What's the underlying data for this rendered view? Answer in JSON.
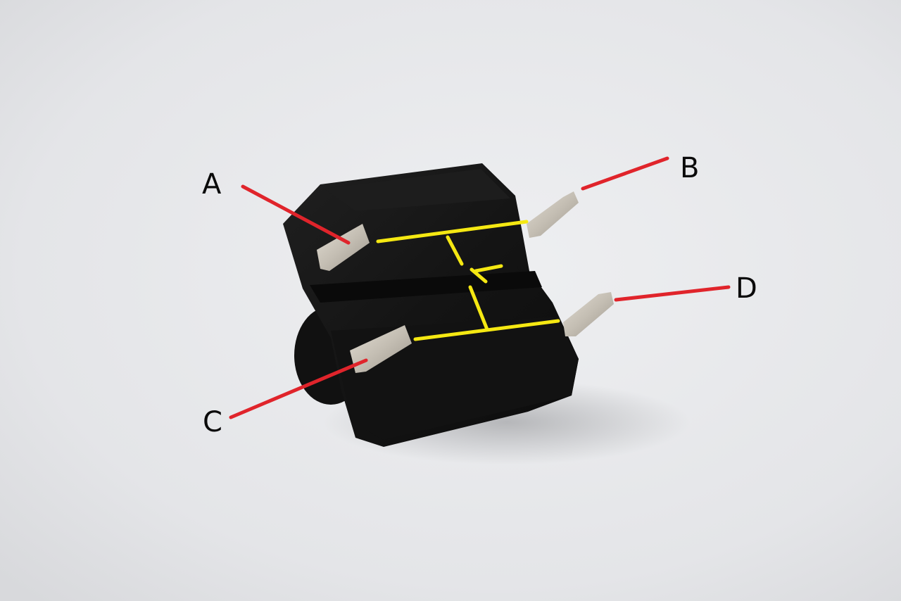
{
  "labels": {
    "a": "A",
    "b": "B",
    "c": "C",
    "d": "D"
  },
  "colors": {
    "background": "#e6e7ea",
    "switch_body": "#151515",
    "pin_metal": "#c9c4bb",
    "leader_line": "#e0242b",
    "circuit_symbol": "#f5e812",
    "label_text": "#0a0a0a"
  }
}
